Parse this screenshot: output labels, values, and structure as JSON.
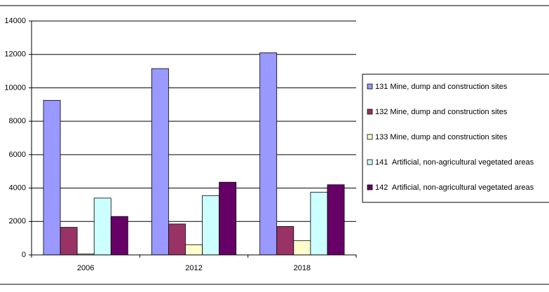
{
  "chart_data": {
    "type": "bar",
    "categories": [
      "2006",
      "2012",
      "2018"
    ],
    "series": [
      {
        "name": "131 Mine, dump and construction sites",
        "color": "#9999ff",
        "values": [
          9250,
          11150,
          12100
        ]
      },
      {
        "name": "132 Mine, dump and construction sites",
        "color": "#993366",
        "values": [
          1650,
          1850,
          1700
        ]
      },
      {
        "name": "133 Mine, dump and construction sites",
        "color": "#ffffcc",
        "values": [
          50,
          600,
          850
        ]
      },
      {
        "name": "141  Artificial, non-agricultural vegetated areas",
        "color": "#ccffff",
        "values": [
          3400,
          3550,
          3750
        ]
      },
      {
        "name": "142  Artificial, non-agricultural vegetated areas",
        "color": "#660066",
        "values": [
          2300,
          4350,
          4200
        ]
      }
    ],
    "ylim": [
      0,
      14000
    ],
    "yticks": [
      0,
      2000,
      4000,
      6000,
      8000,
      10000,
      12000,
      14000
    ],
    "grid": true,
    "legend": "right"
  }
}
